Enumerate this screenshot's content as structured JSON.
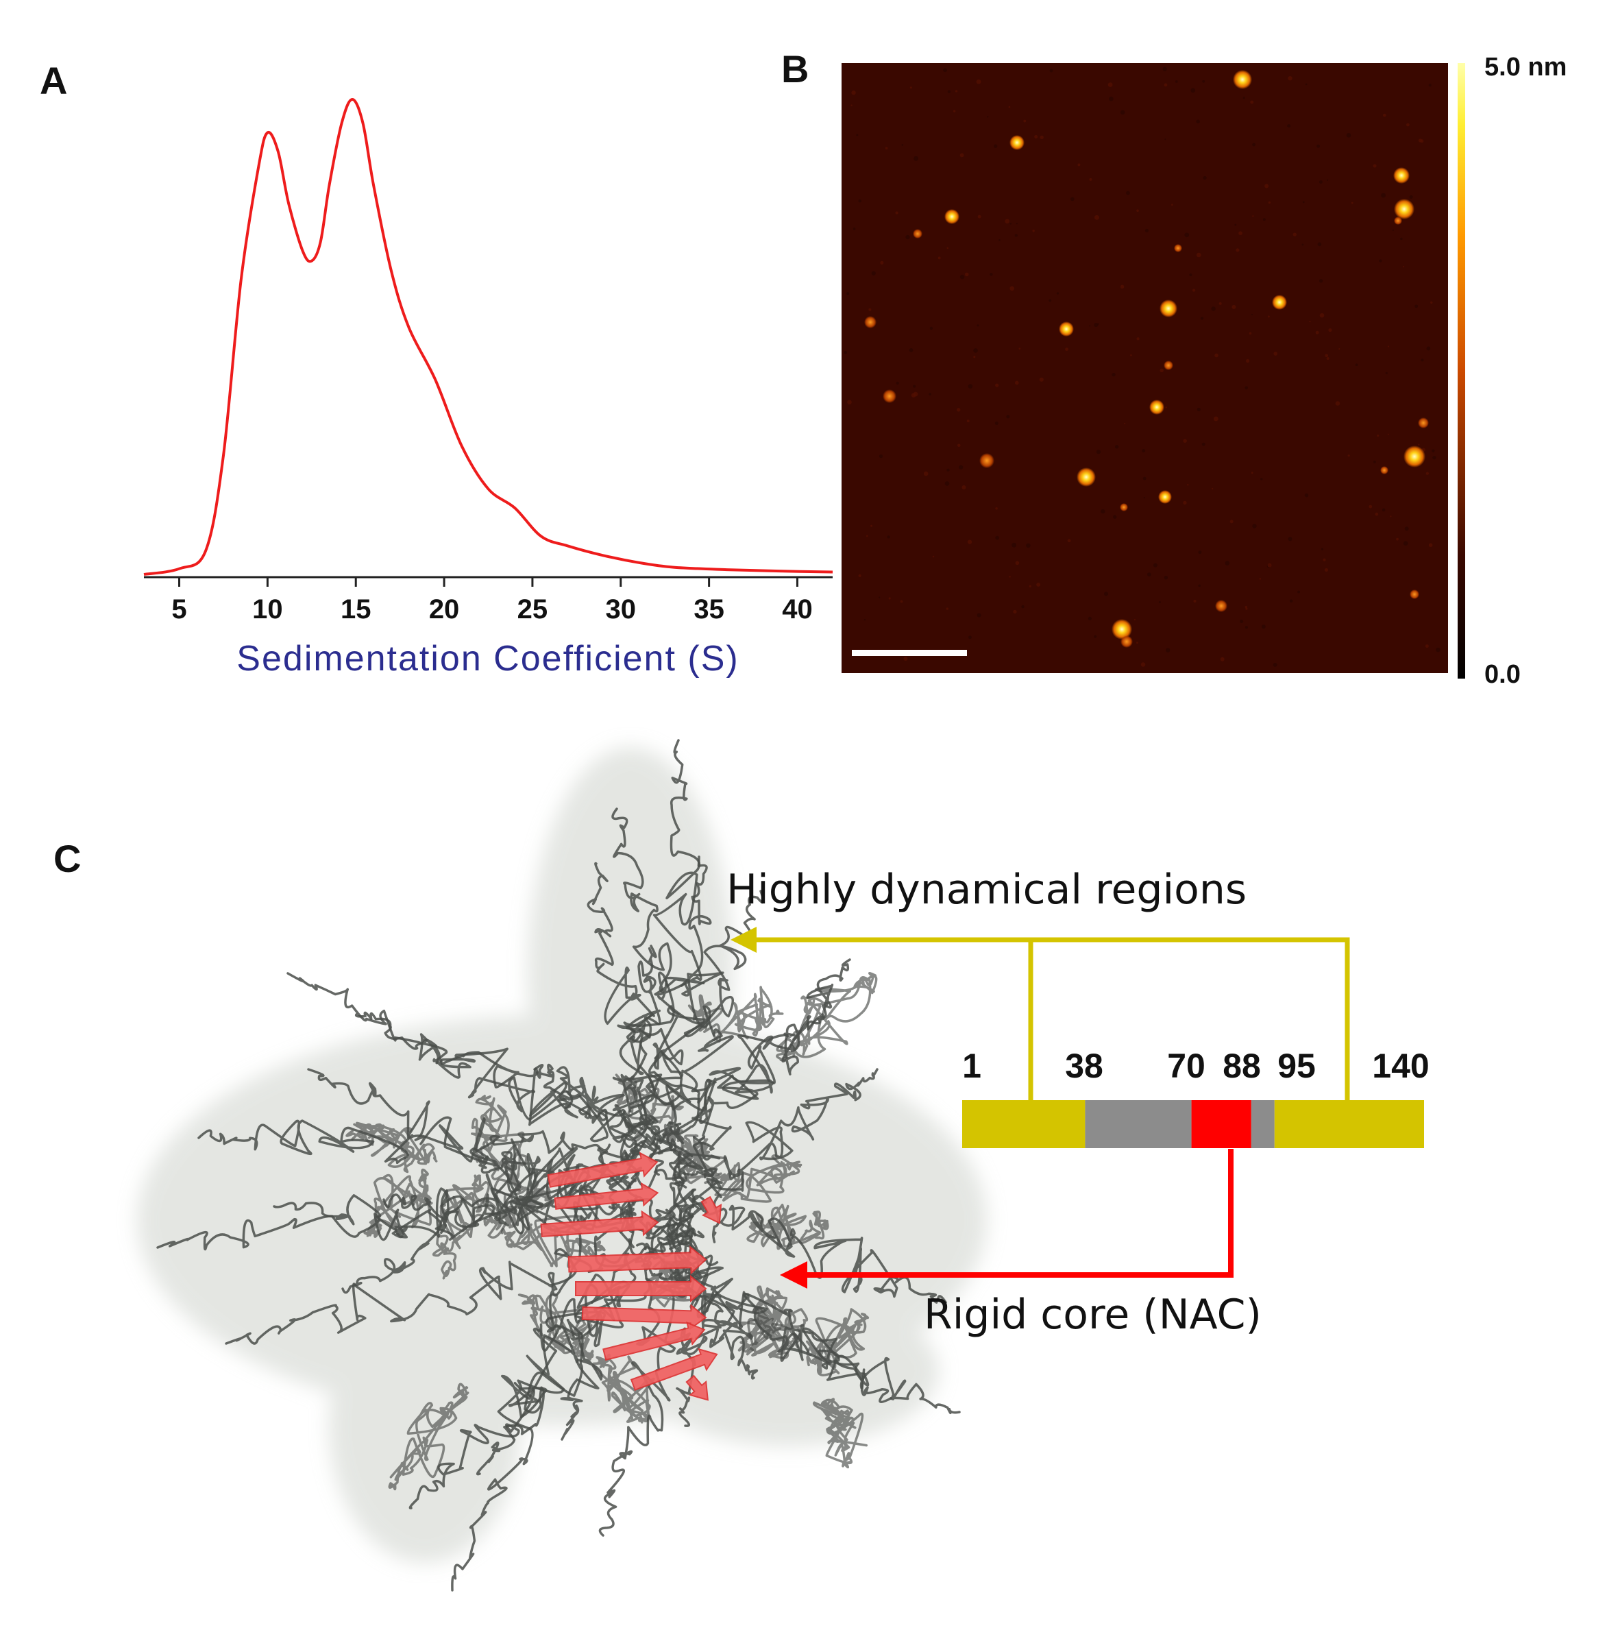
{
  "panels": {
    "a_label": "A",
    "b_label": "B",
    "c_label": "C"
  },
  "chart_data": {
    "type": "line",
    "xlabel": "Sedimentation Coefficient (S)",
    "ylabel": "",
    "xlim": [
      3,
      42
    ],
    "x_ticks": [
      "5",
      "10",
      "15",
      "20",
      "25",
      "30",
      "35",
      "40"
    ],
    "series": [
      {
        "color": "#ee1c1c",
        "x": [
          3,
          5,
          6.5,
          7.5,
          8.5,
          9.5,
          10,
          10.6,
          11.2,
          12,
          12.5,
          13,
          13.5,
          14.2,
          14.8,
          15.4,
          16,
          17,
          18,
          19.5,
          21,
          22.5,
          24,
          25.5,
          27,
          29,
          31,
          33,
          36,
          39,
          42
        ],
        "y": [
          0.0,
          0.012,
          0.05,
          0.25,
          0.62,
          0.86,
          0.93,
          0.89,
          0.78,
          0.68,
          0.66,
          0.7,
          0.82,
          0.95,
          1.0,
          0.95,
          0.82,
          0.64,
          0.52,
          0.41,
          0.27,
          0.18,
          0.14,
          0.08,
          0.06,
          0.04,
          0.025,
          0.015,
          0.01,
          0.007,
          0.005
        ]
      }
    ]
  },
  "afm_image": {
    "colorbar_max": "5.0 nm",
    "colorbar_min": "0.0",
    "colors": [
      "#000000",
      "#3a0800",
      "#cc4a00",
      "#ff9a00",
      "#ffee33",
      "#ffffaa"
    ],
    "background": "#3a0800"
  },
  "structure_diagram": {
    "segment_numbers": [
      "1",
      "38",
      "70",
      "88",
      "95",
      "140"
    ],
    "segments": [
      {
        "name": "n-terminal",
        "start": 1,
        "end": 38,
        "color": "#d4c400"
      },
      {
        "name": "middle-gray",
        "start": 38,
        "end": 70,
        "color": "#8c8c8c"
      },
      {
        "name": "nac-core",
        "start": 70,
        "end": 88,
        "color": "#ff0000"
      },
      {
        "name": "small-gray",
        "start": 88,
        "end": 95,
        "color": "#8c8c8c"
      },
      {
        "name": "c-terminal",
        "start": 95,
        "end": 140,
        "color": "#d4c400"
      }
    ],
    "dynamic_label": "Highly dynamical regions",
    "core_label": "Rigid core (NAC)",
    "dynamic_color": "#d4c400",
    "core_color": "#ff0000"
  }
}
